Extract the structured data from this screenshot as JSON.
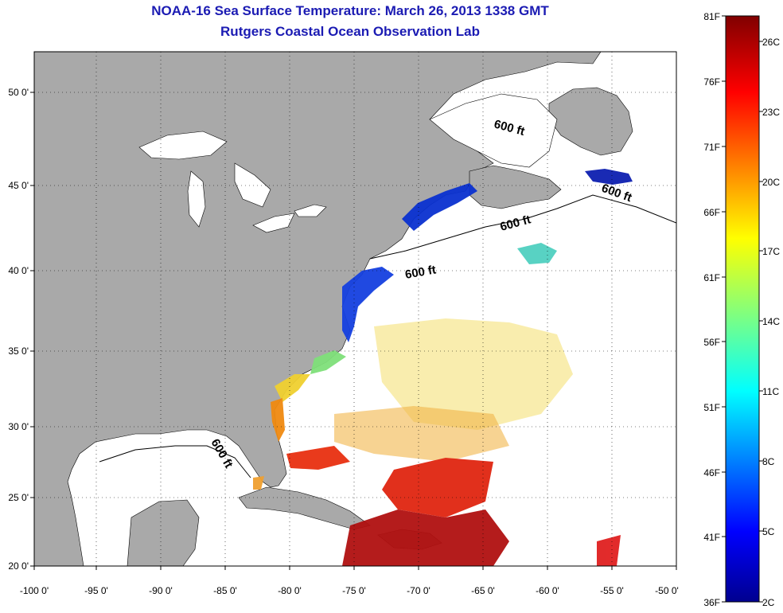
{
  "title": "NOAA-16 Sea Surface Temperature:  March 26, 2013 1338 GMT",
  "subtitle": "Rutgers Coastal Ocean Observation Lab",
  "map": {
    "lon_ticks": [
      "-100 0'",
      "-95 0'",
      "-90 0'",
      "-85 0'",
      "-80 0'",
      "-75 0'",
      "-70 0'",
      "-65 0'",
      "-60 0'",
      "-55 0'",
      "-50 0'"
    ],
    "lat_ticks": [
      "50 0'",
      "45 0'",
      "40 0'",
      "35 0'",
      "30 0'",
      "25 0'",
      "20 0'"
    ],
    "contour_label": "600 ft",
    "land_color": "#a9a9a9",
    "water_color": "#ffffff"
  },
  "colorbar": {
    "fahrenheit": [
      "81F",
      "76F",
      "71F",
      "66F",
      "61F",
      "56F",
      "51F",
      "46F",
      "41F",
      "36F"
    ],
    "celsius": [
      "26C",
      "23C",
      "20C",
      "17C",
      "14C",
      "11C",
      "8C",
      "5C",
      "2C"
    ]
  }
}
